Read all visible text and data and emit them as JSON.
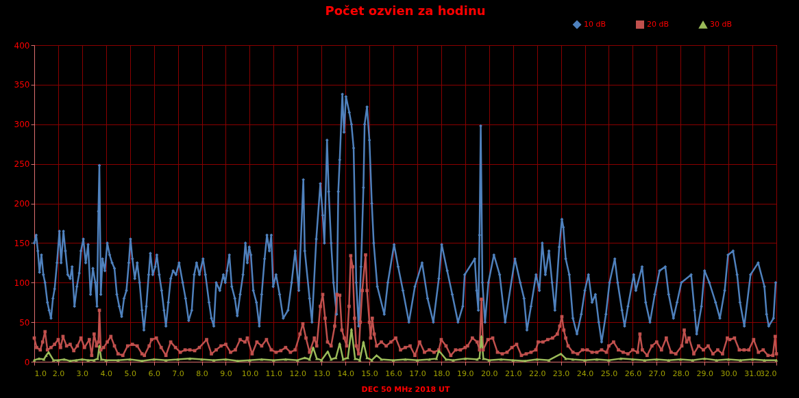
{
  "chart_data": {
    "type": "line",
    "title": "Počet ozvien za hodinu",
    "xlabel": "DEC 50 MHz  2018  UT",
    "xlim": [
      1,
      32
    ],
    "ylim": [
      0,
      400
    ],
    "yticks": [
      0,
      50,
      100,
      150,
      200,
      250,
      300,
      350,
      400
    ],
    "xticks": [
      {
        "value": 1,
        "label": "1.0"
      },
      {
        "value": 2,
        "label": "2.0"
      },
      {
        "value": 3,
        "label": "3.0"
      },
      {
        "value": 4,
        "label": "4.0"
      },
      {
        "value": 5,
        "label": "5.0"
      },
      {
        "value": 6,
        "label": "6.0"
      },
      {
        "value": 7,
        "label": "7.0"
      },
      {
        "value": 8,
        "label": "8.0"
      },
      {
        "value": 9,
        "label": "9.0"
      },
      {
        "value": 10,
        "label": "10.0"
      },
      {
        "value": 11,
        "label": "11.0"
      },
      {
        "value": 12,
        "label": "12.0"
      },
      {
        "value": 13,
        "label": "13.0"
      },
      {
        "value": 14,
        "label": "14.0"
      },
      {
        "value": 15,
        "label": "15.0"
      },
      {
        "value": 16,
        "label": "16.0"
      },
      {
        "value": 17,
        "label": "17.0"
      },
      {
        "value": 18,
        "label": "18.0"
      },
      {
        "value": 19,
        "label": "19.0"
      },
      {
        "value": 20,
        "label": "20.0"
      },
      {
        "value": 21,
        "label": "21.0"
      },
      {
        "value": 22,
        "label": "22.0"
      },
      {
        "value": 23,
        "label": "23.0"
      },
      {
        "value": 24,
        "label": "24.0"
      },
      {
        "value": 25,
        "label": "25.0"
      },
      {
        "value": 26,
        "label": "26.0"
      },
      {
        "value": 27,
        "label": "27.0"
      },
      {
        "value": 28,
        "label": "28.0"
      },
      {
        "value": 29,
        "label": "29.0"
      },
      {
        "value": 30,
        "label": "30.0"
      },
      {
        "value": 31,
        "label": "31.0"
      },
      {
        "value": 32,
        "label": "32.0"
      }
    ],
    "grid": true,
    "legend": "top right",
    "line_style": "solid",
    "series": [
      {
        "name": "10 dB",
        "color": "#4f81bd",
        "marker": "diamond",
        "x": [
          1.0,
          1.08,
          1.15,
          1.22,
          1.3,
          1.38,
          1.45,
          1.55,
          1.62,
          1.7,
          1.78,
          1.85,
          1.95,
          2.05,
          2.12,
          2.22,
          2.3,
          2.4,
          2.5,
          2.58,
          2.68,
          2.78,
          2.88,
          2.95,
          3.05,
          3.15,
          3.25,
          3.35,
          3.45,
          3.55,
          3.62,
          3.68,
          3.72,
          3.78,
          3.85,
          3.95,
          4.05,
          4.15,
          4.25,
          4.35,
          4.45,
          4.55,
          4.65,
          4.75,
          4.85,
          4.95,
          5.02,
          5.1,
          5.2,
          5.3,
          5.4,
          5.5,
          5.58,
          5.68,
          5.78,
          5.85,
          5.95,
          6.05,
          6.12,
          6.22,
          6.32,
          6.42,
          6.5,
          6.6,
          6.7,
          6.8,
          6.92,
          7.05,
          7.2,
          7.32,
          7.45,
          7.58,
          7.68,
          7.78,
          7.9,
          8.05,
          8.15,
          8.3,
          8.4,
          8.5,
          8.6,
          8.75,
          8.9,
          8.98,
          9.05,
          9.15,
          9.25,
          9.38,
          9.48,
          9.6,
          9.72,
          9.82,
          9.9,
          9.98,
          10.05,
          10.15,
          10.28,
          10.4,
          10.5,
          10.62,
          10.72,
          10.82,
          10.9,
          10.98,
          11.1,
          11.25,
          11.4,
          11.6,
          11.75,
          11.9,
          12.05,
          12.24,
          12.3,
          12.5,
          12.6,
          12.78,
          12.95,
          13.05,
          13.12,
          13.23,
          13.3,
          13.4,
          13.5,
          13.63,
          13.7,
          13.76,
          13.87,
          13.94,
          14.02,
          14.16,
          14.25,
          14.34,
          14.45,
          14.55,
          14.65,
          14.75,
          14.8,
          14.9,
          15.0,
          15.1,
          15.18,
          15.33,
          15.62,
          15.77,
          16.03,
          16.2,
          16.4,
          16.65,
          16.9,
          17.2,
          17.43,
          17.67,
          17.9,
          18.02,
          18.25,
          18.46,
          18.7,
          18.9,
          18.98,
          19.4,
          19.48,
          19.55,
          19.6,
          19.65,
          19.72,
          19.83,
          19.97,
          20.2,
          20.44,
          20.67,
          21.08,
          21.3,
          21.46,
          21.58,
          21.75,
          21.96,
          22.1,
          22.22,
          22.35,
          22.5,
          22.63,
          22.75,
          22.93,
          23.04,
          23.1,
          23.2,
          23.35,
          23.5,
          23.67,
          23.85,
          24.0,
          24.15,
          24.3,
          24.44,
          24.58,
          24.7,
          24.88,
          25.03,
          25.25,
          25.37,
          25.55,
          25.66,
          25.8,
          26.04,
          26.13,
          26.39,
          26.54,
          26.72,
          26.92,
          27.12,
          27.36,
          27.5,
          27.7,
          27.85,
          28.03,
          28.44,
          28.58,
          28.67,
          28.87,
          29.0,
          29.2,
          29.46,
          29.64,
          29.84,
          29.98,
          30.19,
          30.36,
          30.48,
          30.66,
          30.92,
          31.24,
          31.5,
          31.59,
          31.68,
          31.88,
          31.97
        ],
        "values": [
          150,
          160,
          140,
          113,
          135,
          110,
          100,
          75,
          65,
          55,
          80,
          92,
          125,
          165,
          125,
          165,
          140,
          110,
          105,
          120,
          70,
          95,
          112,
          140,
          155,
          125,
          148,
          85,
          118,
          100,
          70,
          190,
          248,
          85,
          130,
          115,
          150,
          135,
          125,
          118,
          85,
          70,
          57,
          80,
          90,
          125,
          155,
          130,
          105,
          125,
          100,
          65,
          40,
          70,
          110,
          137,
          110,
          120,
          135,
          110,
          90,
          65,
          45,
          75,
          105,
          115,
          110,
          125,
          100,
          80,
          52,
          65,
          110,
          125,
          110,
          130,
          110,
          75,
          55,
          45,
          100,
          90,
          110,
          100,
          115,
          135,
          95,
          80,
          58,
          85,
          110,
          150,
          125,
          145,
          135,
          90,
          75,
          45,
          85,
          130,
          160,
          140,
          160,
          95,
          110,
          85,
          55,
          65,
          100,
          140,
          90,
          230,
          140,
          80,
          50,
          155,
          225,
          185,
          150,
          280,
          215,
          150,
          100,
          60,
          215,
          255,
          338,
          290,
          335,
          315,
          300,
          270,
          100,
          45,
          120,
          220,
          300,
          322,
          280,
          200,
          150,
          95,
          60,
          100,
          148,
          120,
          90,
          50,
          95,
          125,
          80,
          50,
          105,
          148,
          115,
          85,
          50,
          70,
          110,
          130,
          90,
          65,
          160,
          298,
          100,
          50,
          100,
          135,
          110,
          50,
          130,
          100,
          80,
          40,
          70,
          110,
          90,
          150,
          110,
          140,
          100,
          65,
          145,
          180,
          170,
          130,
          110,
          55,
          35,
          60,
          90,
          110,
          75,
          85,
          50,
          25,
          60,
          100,
          130,
          100,
          65,
          45,
          70,
          110,
          90,
          120,
          75,
          50,
          85,
          115,
          120,
          85,
          55,
          75,
          100,
          110,
          65,
          35,
          70,
          115,
          100,
          75,
          55,
          90,
          135,
          140,
          110,
          75,
          45,
          110,
          125,
          95,
          60,
          45,
          55,
          100
        ]
      },
      {
        "name": "20 dB",
        "color": "#c0504d",
        "marker": "square",
        "x": [
          1.0,
          1.1,
          1.25,
          1.35,
          1.45,
          1.55,
          1.7,
          1.85,
          2.0,
          2.1,
          2.2,
          2.35,
          2.5,
          2.65,
          2.8,
          2.95,
          3.1,
          3.3,
          3.4,
          3.5,
          3.6,
          3.68,
          3.72,
          3.78,
          3.9,
          4.05,
          4.2,
          4.35,
          4.5,
          4.7,
          4.9,
          5.1,
          5.3,
          5.5,
          5.6,
          5.8,
          5.9,
          6.1,
          6.3,
          6.5,
          6.7,
          6.9,
          7.1,
          7.3,
          7.5,
          7.7,
          7.9,
          8.2,
          8.4,
          8.6,
          8.8,
          9.0,
          9.2,
          9.4,
          9.6,
          9.8,
          9.9,
          10.1,
          10.3,
          10.5,
          10.7,
          10.9,
          11.1,
          11.3,
          11.5,
          11.7,
          11.9,
          12.1,
          12.22,
          12.35,
          12.5,
          12.7,
          12.8,
          12.95,
          13.05,
          13.15,
          13.25,
          13.4,
          13.55,
          13.65,
          13.76,
          13.85,
          13.95,
          14.05,
          14.15,
          14.22,
          14.3,
          14.38,
          14.45,
          14.55,
          14.62,
          14.7,
          14.84,
          14.9,
          15.0,
          15.05,
          15.12,
          15.2,
          15.3,
          15.5,
          15.7,
          15.9,
          16.1,
          16.3,
          16.5,
          16.7,
          16.9,
          17.1,
          17.3,
          17.5,
          17.7,
          17.9,
          18.0,
          18.2,
          18.4,
          18.6,
          18.8,
          19.0,
          19.1,
          19.3,
          19.5,
          19.6,
          19.68,
          19.75,
          19.95,
          20.15,
          20.35,
          20.55,
          20.75,
          20.95,
          21.15,
          21.35,
          21.55,
          21.75,
          21.95,
          22.05,
          22.25,
          22.45,
          22.65,
          22.85,
          22.95,
          23.04,
          23.12,
          23.2,
          23.3,
          23.5,
          23.7,
          23.9,
          24.1,
          24.3,
          24.5,
          24.7,
          24.9,
          25.0,
          25.2,
          25.4,
          25.6,
          25.8,
          26.0,
          26.2,
          26.3,
          26.4,
          26.6,
          26.8,
          27.0,
          27.2,
          27.4,
          27.6,
          27.8,
          28.05,
          28.15,
          28.25,
          28.35,
          28.55,
          28.75,
          28.95,
          29.15,
          29.35,
          29.55,
          29.75,
          29.95,
          30.05,
          30.25,
          30.45,
          30.65,
          30.85,
          31.05,
          31.25,
          31.45,
          31.65,
          31.85,
          31.95,
          32.0
        ],
        "values": [
          30,
          18,
          15,
          25,
          38,
          15,
          18,
          22,
          28,
          18,
          32,
          20,
          22,
          14,
          20,
          30,
          18,
          28,
          8,
          35,
          20,
          25,
          65,
          15,
          18,
          25,
          32,
          20,
          10,
          8,
          20,
          22,
          20,
          10,
          8,
          20,
          28,
          30,
          18,
          8,
          25,
          18,
          12,
          15,
          15,
          14,
          18,
          28,
          10,
          15,
          20,
          22,
          12,
          15,
          28,
          25,
          30,
          10,
          25,
          20,
          28,
          15,
          12,
          14,
          18,
          12,
          15,
          35,
          48,
          30,
          12,
          30,
          20,
          70,
          85,
          55,
          25,
          20,
          45,
          85,
          84,
          40,
          30,
          20,
          70,
          134,
          120,
          55,
          20,
          10,
          50,
          90,
          135,
          90,
          50,
          30,
          55,
          35,
          20,
          25,
          20,
          25,
          30,
          15,
          18,
          20,
          8,
          25,
          12,
          15,
          12,
          15,
          28,
          20,
          8,
          15,
          15,
          18,
          20,
          30,
          25,
          15,
          79,
          15,
          28,
          30,
          12,
          10,
          12,
          18,
          22,
          8,
          10,
          12,
          15,
          25,
          25,
          28,
          30,
          35,
          45,
          57,
          40,
          30,
          20,
          12,
          10,
          15,
          15,
          12,
          12,
          15,
          12,
          20,
          25,
          15,
          12,
          10,
          15,
          12,
          35,
          15,
          8,
          20,
          25,
          15,
          30,
          12,
          10,
          20,
          40,
          25,
          30,
          10,
          20,
          15,
          20,
          10,
          15,
          10,
          30,
          28,
          30,
          15,
          15,
          15,
          28,
          12,
          15,
          8,
          8,
          32,
          10
        ]
      },
      {
        "name": "30 dB",
        "color": "#9bbb59",
        "marker": "triangle",
        "x": [
          1.0,
          1.2,
          1.4,
          1.5,
          1.6,
          1.8,
          2.0,
          2.25,
          2.5,
          2.75,
          3.0,
          3.25,
          3.5,
          3.65,
          3.72,
          3.8,
          4.0,
          4.5,
          5.0,
          5.5,
          6.0,
          6.5,
          7.0,
          7.5,
          8.0,
          8.5,
          9.0,
          9.5,
          10.0,
          10.5,
          11.0,
          11.5,
          12.0,
          12.3,
          12.5,
          12.65,
          12.8,
          13.0,
          13.26,
          13.4,
          13.6,
          13.76,
          13.9,
          14.1,
          14.25,
          14.4,
          14.6,
          14.75,
          14.9,
          15.1,
          15.3,
          15.5,
          16.0,
          16.5,
          17.0,
          17.5,
          17.8,
          17.9,
          18.2,
          18.5,
          19.0,
          19.5,
          19.6,
          19.68,
          19.76,
          20.0,
          20.5,
          21.0,
          21.5,
          22.0,
          22.5,
          23.0,
          23.2,
          23.5,
          24.0,
          24.5,
          25.0,
          25.5,
          26.0,
          26.5,
          27.0,
          27.5,
          28.0,
          28.5,
          29.0,
          29.5,
          30.0,
          30.5,
          31.0,
          31.5,
          32.0
        ],
        "values": [
          2,
          4,
          3,
          8,
          12,
          2,
          2,
          3,
          1,
          2,
          3,
          2,
          2,
          4,
          20,
          3,
          2,
          2,
          3,
          1,
          3,
          2,
          3,
          4,
          3,
          2,
          3,
          1,
          2,
          3,
          2,
          3,
          2,
          5,
          3,
          18,
          4,
          2,
          13,
          3,
          5,
          23,
          3,
          5,
          41,
          4,
          2,
          25,
          5,
          2,
          8,
          3,
          2,
          3,
          2,
          3,
          4,
          14,
          3,
          2,
          4,
          3,
          5,
          32,
          4,
          2,
          3,
          2,
          1,
          3,
          2,
          10,
          4,
          3,
          2,
          3,
          2,
          4,
          3,
          2,
          3,
          2,
          3,
          2,
          4,
          2,
          3,
          2,
          3,
          2,
          2
        ]
      }
    ]
  }
}
